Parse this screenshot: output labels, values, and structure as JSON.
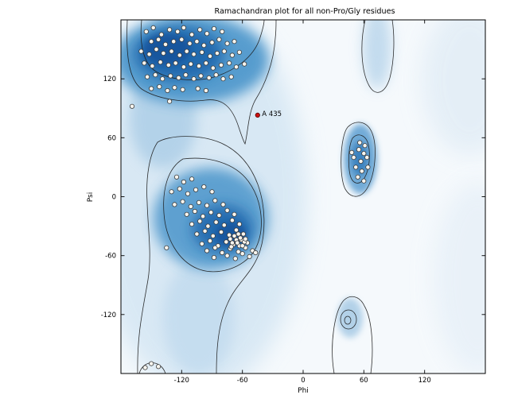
{
  "chart_data": {
    "type": "scatter",
    "title": "Ramachandran plot for all non-Pro/Gly residues",
    "xlabel": "Phi",
    "ylabel": "Psi",
    "xlim": [
      -180,
      180
    ],
    "ylim": [
      -180,
      180
    ],
    "xticks": [
      -120,
      -60,
      0,
      60,
      120
    ],
    "yticks": [
      120,
      60,
      0,
      -60,
      -120
    ],
    "grid": false,
    "legend": null,
    "point_style": {
      "fill": "#f7f5ef",
      "stroke": "#3c3c3c",
      "radius": 2.7
    },
    "colors": {
      "density_darkest": "#15539b",
      "density_dark": "#1e65ab",
      "density_mid": "#4a94ca",
      "density_light": "#cfe3f2",
      "background": "#f5f9fc",
      "contour": "#1b1b1b",
      "highlight": "#cc1111"
    },
    "density_regions": [
      {
        "name": "beta-sheet",
        "center": [
          -110,
          140
        ]
      },
      {
        "name": "alpha-helix",
        "center": [
          -72,
          -35
        ]
      },
      {
        "name": "left-handed-helix",
        "center": [
          57,
          35
        ]
      }
    ],
    "points": [
      [
        -155,
        168
      ],
      [
        -148,
        172
      ],
      [
        -140,
        165
      ],
      [
        -132,
        170
      ],
      [
        -124,
        168
      ],
      [
        -118,
        172
      ],
      [
        -110,
        165
      ],
      [
        -102,
        170
      ],
      [
        -95,
        166
      ],
      [
        -88,
        171
      ],
      [
        -80,
        168
      ],
      [
        -150,
        158
      ],
      [
        -143,
        160
      ],
      [
        -136,
        155
      ],
      [
        -128,
        158
      ],
      [
        -120,
        160
      ],
      [
        -112,
        156
      ],
      [
        -105,
        158
      ],
      [
        -98,
        154
      ],
      [
        -90,
        157
      ],
      [
        -83,
        160
      ],
      [
        -75,
        156
      ],
      [
        -68,
        158
      ],
      [
        -160,
        148
      ],
      [
        -152,
        145
      ],
      [
        -145,
        150
      ],
      [
        -138,
        146
      ],
      [
        -130,
        148
      ],
      [
        -122,
        144
      ],
      [
        -115,
        148
      ],
      [
        -108,
        145
      ],
      [
        -100,
        147
      ],
      [
        -92,
        143
      ],
      [
        -85,
        146
      ],
      [
        -78,
        148
      ],
      [
        -70,
        144
      ],
      [
        -63,
        147
      ],
      [
        -157,
        136
      ],
      [
        -149,
        133
      ],
      [
        -141,
        137
      ],
      [
        -133,
        134
      ],
      [
        -126,
        136
      ],
      [
        -118,
        132
      ],
      [
        -111,
        135
      ],
      [
        -103,
        133
      ],
      [
        -96,
        136
      ],
      [
        -89,
        131
      ],
      [
        -81,
        134
      ],
      [
        -73,
        136
      ],
      [
        -66,
        132
      ],
      [
        -58,
        135
      ],
      [
        -154,
        122
      ],
      [
        -146,
        124
      ],
      [
        -139,
        120
      ],
      [
        -131,
        123
      ],
      [
        -123,
        121
      ],
      [
        -116,
        124
      ],
      [
        -108,
        120
      ],
      [
        -101,
        123
      ],
      [
        -93,
        121
      ],
      [
        -86,
        124
      ],
      [
        -79,
        120
      ],
      [
        -71,
        122
      ],
      [
        -150,
        110
      ],
      [
        -142,
        112
      ],
      [
        -134,
        108
      ],
      [
        -127,
        111
      ],
      [
        -119,
        109
      ],
      [
        -104,
        110
      ],
      [
        -96,
        108
      ],
      [
        -169,
        92
      ],
      [
        -132,
        97
      ],
      [
        -125,
        20
      ],
      [
        -118,
        15
      ],
      [
        -110,
        18
      ],
      [
        -130,
        5
      ],
      [
        -122,
        8
      ],
      [
        -114,
        3
      ],
      [
        -106,
        7
      ],
      [
        -98,
        10
      ],
      [
        -90,
        5
      ],
      [
        -127,
        -8
      ],
      [
        -119,
        -5
      ],
      [
        -111,
        -10
      ],
      [
        -103,
        -6
      ],
      [
        -95,
        -9
      ],
      [
        -87,
        -4
      ],
      [
        -79,
        -8
      ],
      [
        -115,
        -18
      ],
      [
        -107,
        -15
      ],
      [
        -99,
        -20
      ],
      [
        -91,
        -16
      ],
      [
        -83,
        -19
      ],
      [
        -75,
        -14
      ],
      [
        -68,
        -18
      ],
      [
        -110,
        -28
      ],
      [
        -102,
        -25
      ],
      [
        -94,
        -30
      ],
      [
        -86,
        -26
      ],
      [
        -78,
        -29
      ],
      [
        -70,
        -24
      ],
      [
        -63,
        -28
      ],
      [
        -105,
        -38
      ],
      [
        -97,
        -35
      ],
      [
        -89,
        -40
      ],
      [
        -81,
        -36
      ],
      [
        -73,
        -39
      ],
      [
        -66,
        -34
      ],
      [
        -59,
        -38
      ],
      [
        -100,
        -48
      ],
      [
        -92,
        -45
      ],
      [
        -84,
        -50
      ],
      [
        -76,
        -46
      ],
      [
        -69,
        -49
      ],
      [
        -61,
        -44
      ],
      [
        -55,
        -47
      ],
      [
        -95,
        -55
      ],
      [
        -87,
        -52
      ],
      [
        -80,
        -57
      ],
      [
        -72,
        -53
      ],
      [
        -64,
        -56
      ],
      [
        -57,
        -52
      ],
      [
        -50,
        -55
      ],
      [
        -88,
        -62
      ],
      [
        -75,
        -60
      ],
      [
        -67,
        -63
      ],
      [
        -60,
        -58
      ],
      [
        -53,
        -61
      ],
      [
        -47,
        -57
      ],
      [
        -135,
        -52
      ],
      [
        -62,
        -42
      ],
      [
        -58,
        -46
      ],
      [
        -66,
        -44
      ],
      [
        -70,
        -47
      ],
      [
        -63,
        -50
      ],
      [
        -68,
        -40
      ],
      [
        -72,
        -43
      ],
      [
        -65,
        -47
      ],
      [
        -60,
        -50
      ],
      [
        -57,
        -43
      ],
      [
        -71,
        -51
      ],
      [
        -64,
        -38
      ],
      [
        55,
        48
      ],
      [
        60,
        44
      ],
      [
        50,
        40
      ],
      [
        57,
        36
      ],
      [
        63,
        40
      ],
      [
        52,
        30
      ],
      [
        58,
        26
      ],
      [
        64,
        30
      ],
      [
        54,
        20
      ],
      [
        60,
        16
      ],
      [
        48,
        45
      ],
      [
        56,
        55
      ],
      [
        61,
        52
      ],
      [
        -150,
        -170
      ],
      [
        -143,
        -173
      ],
      [
        -156,
        -174
      ]
    ],
    "highlight": {
      "label": "A 435",
      "phi": -45,
      "psi": 83,
      "color": "#cc1111"
    }
  }
}
